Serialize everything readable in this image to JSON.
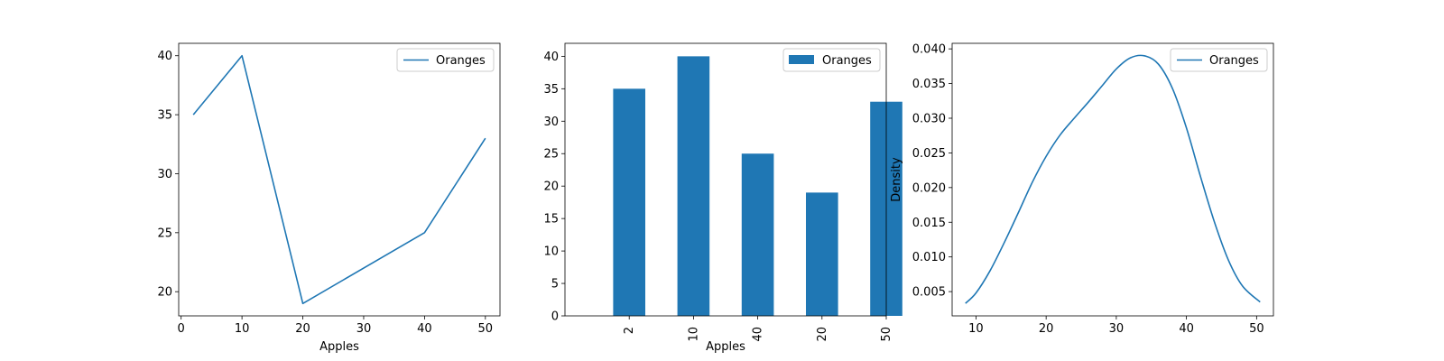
{
  "chart_data": [
    {
      "type": "line",
      "x": [
        2,
        10,
        20,
        40,
        50
      ],
      "series": [
        {
          "name": "Oranges",
          "values": [
            35,
            40,
            19,
            25,
            33
          ]
        }
      ],
      "xlabel": "Apples",
      "ylabel": "",
      "xlim": [
        -0.4,
        52.4
      ],
      "ylim": [
        17.95,
        41.05
      ],
      "xticks": [
        0,
        10,
        20,
        30,
        40,
        50
      ],
      "yticks": [
        20,
        25,
        30,
        35,
        40
      ],
      "grid": false,
      "legend": "top-right",
      "color": "#1f77b4"
    },
    {
      "type": "bar",
      "categories": [
        "2",
        "10",
        "40",
        "20",
        "50"
      ],
      "series": [
        {
          "name": "Oranges",
          "values": [
            35,
            40,
            25,
            19,
            33
          ]
        }
      ],
      "xlabel": "Apples",
      "ylabel": "",
      "ylim": [
        0,
        42
      ],
      "yticks": [
        0,
        5,
        10,
        15,
        20,
        25,
        30,
        35,
        40
      ],
      "grid": false,
      "legend": "top-right",
      "color": "#1f77b4"
    },
    {
      "type": "line",
      "x": [
        8.5,
        10,
        12,
        14,
        16,
        18,
        20,
        22,
        24,
        26,
        28,
        30,
        32,
        34,
        36,
        38,
        40,
        42,
        44,
        46,
        48,
        50.5
      ],
      "series": [
        {
          "name": "Oranges",
          "values": [
            0.0033,
            0.0048,
            0.008,
            0.012,
            0.0163,
            0.0207,
            0.0245,
            0.0276,
            0.03,
            0.0323,
            0.0347,
            0.0371,
            0.0387,
            0.039,
            0.0378,
            0.0343,
            0.0286,
            0.0216,
            0.015,
            0.0095,
            0.0058,
            0.0035
          ]
        }
      ],
      "xlabel": "",
      "ylabel": "Density",
      "xlim": [
        6.6,
        52.4
      ],
      "ylim": [
        0.0015,
        0.0408
      ],
      "xticks": [
        10,
        20,
        30,
        40,
        50
      ],
      "yticks": [
        0.005,
        0.01,
        0.015,
        0.02,
        0.025,
        0.03,
        0.035,
        0.04
      ],
      "ytick_labels": [
        "0.005",
        "0.010",
        "0.015",
        "0.020",
        "0.025",
        "0.030",
        "0.035",
        "0.040"
      ],
      "grid": false,
      "legend": "top-right",
      "color": "#1f77b4"
    }
  ]
}
